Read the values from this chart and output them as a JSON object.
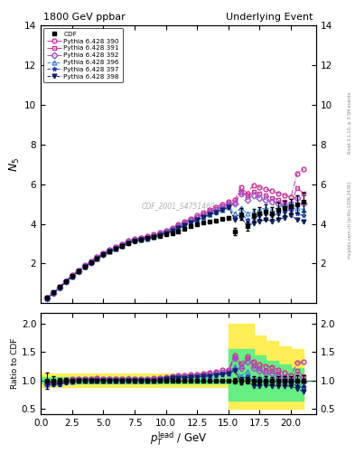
{
  "title_left": "1800 GeV ppbar",
  "title_right": "Underlying Event",
  "ylabel_main": "$N_\\mathrm{ch}$",
  "ylabel_ratio": "Ratio to CDF",
  "xlabel": "$p_T^\\mathrm{lead}$ / GeV",
  "rivet_label": "Rivet 3.1.10, ≥ 3.3M events",
  "mcplots_label": "mcplots.cern.ch [arXiv:1306.3436]",
  "watermark": "CDF_2001_S4751469",
  "xlim": [
    0,
    22
  ],
  "ylim_main": [
    0,
    14
  ],
  "ylim_ratio": [
    0.4,
    2.2
  ],
  "yticks_main": [
    2,
    4,
    6,
    8,
    10,
    12,
    14
  ],
  "yticks_ratio": [
    0.5,
    1.0,
    1.5,
    2.0
  ],
  "cdf_x": [
    0.5,
    1.0,
    1.5,
    2.0,
    2.5,
    3.0,
    3.5,
    4.0,
    4.5,
    5.0,
    5.5,
    6.0,
    6.5,
    7.0,
    7.5,
    8.0,
    8.5,
    9.0,
    9.5,
    10.0,
    10.5,
    11.0,
    11.5,
    12.0,
    12.5,
    13.0,
    13.5,
    14.0,
    14.5,
    15.0,
    15.5,
    16.0,
    16.5,
    17.0,
    17.5,
    18.0,
    18.5,
    19.0,
    19.5,
    20.0,
    20.5,
    21.0
  ],
  "cdf_y": [
    0.28,
    0.55,
    0.82,
    1.12,
    1.38,
    1.62,
    1.86,
    2.06,
    2.26,
    2.46,
    2.62,
    2.76,
    2.9,
    3.04,
    3.15,
    3.22,
    3.28,
    3.34,
    3.4,
    3.46,
    3.52,
    3.62,
    3.75,
    3.88,
    3.98,
    4.05,
    4.12,
    4.18,
    4.24,
    4.32,
    3.6,
    4.5,
    3.9,
    4.45,
    4.55,
    4.6,
    4.55,
    4.7,
    4.8,
    4.9,
    5.0,
    5.1
  ],
  "cdf_yerr": [
    0.04,
    0.04,
    0.04,
    0.04,
    0.04,
    0.04,
    0.04,
    0.04,
    0.04,
    0.04,
    0.04,
    0.04,
    0.04,
    0.04,
    0.04,
    0.04,
    0.04,
    0.04,
    0.04,
    0.04,
    0.04,
    0.04,
    0.04,
    0.04,
    0.04,
    0.04,
    0.04,
    0.04,
    0.04,
    0.08,
    0.18,
    0.28,
    0.22,
    0.32,
    0.28,
    0.38,
    0.28,
    0.38,
    0.38,
    0.38,
    0.42,
    0.48
  ],
  "band_yellow_lo": [
    0.88,
    0.88,
    0.88,
    0.88,
    0.88,
    0.88,
    0.88,
    0.88,
    0.88,
    0.88,
    0.88,
    0.88,
    0.88,
    0.88,
    0.88,
    0.5,
    0.5,
    0.5,
    0.5,
    0.5,
    0.5,
    0.5
  ],
  "band_yellow_hi": [
    1.12,
    1.12,
    1.12,
    1.12,
    1.12,
    1.12,
    1.12,
    1.12,
    1.12,
    1.12,
    1.12,
    1.12,
    1.12,
    1.12,
    1.12,
    2.0,
    2.0,
    1.8,
    1.7,
    1.6,
    1.55,
    1.5
  ],
  "band_green_lo": [
    0.94,
    0.94,
    0.94,
    0.94,
    0.94,
    0.94,
    0.94,
    0.94,
    0.94,
    0.94,
    0.94,
    0.94,
    0.94,
    0.94,
    0.94,
    0.65,
    0.65,
    0.65,
    0.65,
    0.65,
    0.65,
    0.65
  ],
  "band_green_hi": [
    1.06,
    1.06,
    1.06,
    1.06,
    1.06,
    1.06,
    1.06,
    1.06,
    1.06,
    1.06,
    1.06,
    1.06,
    1.06,
    1.06,
    1.06,
    1.55,
    1.55,
    1.45,
    1.35,
    1.28,
    1.22,
    1.18
  ],
  "band_x": [
    0,
    1,
    2,
    3,
    4,
    5,
    6,
    7,
    8,
    9,
    10,
    11,
    12,
    13,
    14,
    15,
    16,
    17,
    18,
    19,
    20,
    21
  ],
  "series": [
    {
      "label": "Pythia 6.428 390",
      "color": "#cc3399",
      "marker": "o",
      "filled": false,
      "linestyle": "-.",
      "y": [
        0.27,
        0.54,
        0.82,
        1.13,
        1.42,
        1.67,
        1.92,
        2.12,
        2.34,
        2.54,
        2.7,
        2.84,
        2.99,
        3.14,
        3.25,
        3.31,
        3.37,
        3.46,
        3.56,
        3.67,
        3.8,
        3.96,
        4.12,
        4.27,
        4.43,
        4.57,
        4.72,
        4.86,
        5.0,
        5.13,
        5.2,
        5.85,
        5.55,
        5.95,
        5.85,
        5.75,
        5.65,
        5.55,
        5.45,
        5.35,
        6.55,
        6.75
      ]
    },
    {
      "label": "Pythia 6.428 391",
      "color": "#cc3399",
      "marker": "s",
      "filled": false,
      "linestyle": "-.",
      "y": [
        0.27,
        0.53,
        0.81,
        1.12,
        1.4,
        1.65,
        1.9,
        2.1,
        2.32,
        2.52,
        2.67,
        2.82,
        2.97,
        3.12,
        3.22,
        3.28,
        3.34,
        3.42,
        3.52,
        3.62,
        3.74,
        3.89,
        4.04,
        4.19,
        4.34,
        4.47,
        4.6,
        4.74,
        4.87,
        4.99,
        5.08,
        5.62,
        5.42,
        5.62,
        5.52,
        5.42,
        5.32,
        5.22,
        5.12,
        5.02,
        5.82,
        5.52
      ]
    },
    {
      "label": "Pythia 6.428 392",
      "color": "#9955cc",
      "marker": "D",
      "filled": false,
      "linestyle": "-.",
      "y": [
        0.26,
        0.52,
        0.79,
        1.11,
        1.38,
        1.63,
        1.88,
        2.08,
        2.3,
        2.5,
        2.66,
        2.8,
        2.95,
        3.1,
        3.2,
        3.26,
        3.32,
        3.4,
        3.5,
        3.6,
        3.72,
        3.87,
        4.02,
        4.17,
        4.32,
        4.45,
        4.58,
        4.72,
        4.85,
        4.97,
        5.02,
        5.52,
        5.22,
        5.42,
        5.32,
        5.22,
        5.12,
        5.02,
        4.92,
        4.82,
        5.32,
        5.02
      ]
    },
    {
      "label": "Pythia 6.428 396",
      "color": "#4488cc",
      "marker": "^",
      "filled": false,
      "linestyle": "--",
      "y": [
        0.26,
        0.52,
        0.78,
        1.09,
        1.36,
        1.61,
        1.85,
        2.05,
        2.26,
        2.46,
        2.62,
        2.76,
        2.9,
        3.05,
        3.15,
        3.21,
        3.27,
        3.35,
        3.45,
        3.55,
        3.67,
        3.81,
        3.95,
        4.1,
        4.23,
        4.35,
        4.48,
        4.61,
        4.73,
        4.85,
        4.52,
        4.82,
        4.52,
        4.62,
        4.72,
        4.82,
        4.72,
        4.82,
        4.92,
        5.02,
        4.82,
        4.72
      ]
    },
    {
      "label": "Pythia 6.428 397",
      "color": "#2244aa",
      "marker": "*",
      "filled": false,
      "linestyle": "--",
      "y": [
        0.26,
        0.51,
        0.77,
        1.08,
        1.35,
        1.6,
        1.84,
        2.04,
        2.25,
        2.45,
        2.61,
        2.75,
        2.89,
        3.04,
        3.13,
        3.19,
        3.25,
        3.33,
        3.43,
        3.53,
        3.65,
        3.79,
        3.93,
        4.08,
        4.21,
        4.33,
        4.46,
        4.59,
        4.71,
        4.83,
        4.32,
        4.52,
        4.22,
        4.32,
        4.42,
        4.52,
        4.42,
        4.52,
        4.62,
        4.72,
        4.52,
        4.42
      ]
    },
    {
      "label": "Pythia 6.428 398",
      "color": "#112266",
      "marker": "v",
      "filled": true,
      "linestyle": "--",
      "y": [
        0.26,
        0.51,
        0.77,
        1.08,
        1.35,
        1.6,
        1.84,
        2.04,
        2.25,
        2.45,
        2.61,
        2.75,
        2.89,
        3.04,
        3.13,
        3.19,
        3.25,
        3.33,
        3.43,
        3.53,
        3.65,
        3.79,
        3.93,
        4.08,
        4.21,
        4.33,
        4.46,
        4.59,
        4.71,
        4.83,
        4.22,
        4.32,
        3.92,
        4.02,
        4.12,
        4.22,
        4.12,
        4.22,
        4.32,
        4.42,
        4.22,
        4.12
      ]
    }
  ]
}
